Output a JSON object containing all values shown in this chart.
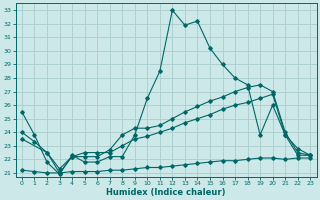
{
  "xlabel": "Humidex (Indice chaleur)",
  "bg_color": "#cce8e8",
  "grid_color": "#aacccc",
  "line_color": "#006666",
  "xlim": [
    -0.5,
    23.5
  ],
  "ylim": [
    20.7,
    33.5
  ],
  "yticks": [
    21,
    22,
    23,
    24,
    25,
    26,
    27,
    28,
    29,
    30,
    31,
    32,
    33
  ],
  "xticks": [
    0,
    1,
    2,
    3,
    4,
    5,
    6,
    7,
    8,
    9,
    10,
    11,
    12,
    13,
    14,
    15,
    16,
    17,
    18,
    19,
    20,
    21,
    22,
    23
  ],
  "line1_x": [
    0,
    1,
    2,
    3,
    4,
    5,
    6,
    7,
    8,
    9,
    10,
    11,
    12,
    13,
    14,
    15,
    16,
    17,
    18,
    19,
    20,
    21,
    22,
    23
  ],
  "line1_y": [
    25.5,
    23.8,
    21.8,
    20.9,
    22.3,
    21.8,
    21.8,
    22.2,
    22.2,
    23.8,
    26.5,
    28.5,
    33.0,
    31.9,
    32.2,
    30.2,
    29.0,
    28.0,
    27.5,
    23.8,
    26.0,
    23.8,
    22.3,
    22.3
  ],
  "line2_x": [
    0,
    1,
    2,
    3,
    4,
    5,
    6,
    7,
    8,
    9,
    10,
    11,
    12,
    13,
    14,
    15,
    16,
    17,
    18,
    19,
    20,
    21,
    22,
    23
  ],
  "line2_y": [
    24.0,
    23.3,
    22.5,
    21.3,
    22.2,
    22.2,
    22.2,
    22.7,
    23.8,
    24.3,
    24.3,
    24.5,
    25.0,
    25.5,
    25.9,
    26.3,
    26.6,
    27.0,
    27.3,
    27.5,
    27.0,
    24.0,
    22.5,
    22.3
  ],
  "line3_x": [
    0,
    2,
    3,
    4,
    5,
    6,
    7,
    8,
    9,
    10,
    11,
    12,
    13,
    14,
    15,
    16,
    17,
    18,
    19,
    20,
    21,
    22,
    23
  ],
  "line3_y": [
    23.5,
    22.5,
    21.0,
    22.2,
    22.5,
    22.5,
    22.5,
    23.0,
    23.5,
    23.7,
    24.0,
    24.3,
    24.7,
    25.0,
    25.3,
    25.7,
    26.0,
    26.2,
    26.5,
    26.8,
    23.8,
    22.8,
    22.3
  ],
  "line4_x": [
    0,
    1,
    2,
    3,
    4,
    5,
    6,
    7,
    8,
    9,
    10,
    11,
    12,
    13,
    14,
    15,
    16,
    17,
    18,
    19,
    20,
    21,
    22,
    23
  ],
  "line4_y": [
    21.2,
    21.1,
    21.0,
    21.0,
    21.1,
    21.1,
    21.1,
    21.2,
    21.2,
    21.3,
    21.4,
    21.4,
    21.5,
    21.6,
    21.7,
    21.8,
    21.9,
    21.9,
    22.0,
    22.1,
    22.1,
    22.0,
    22.1,
    22.1
  ]
}
